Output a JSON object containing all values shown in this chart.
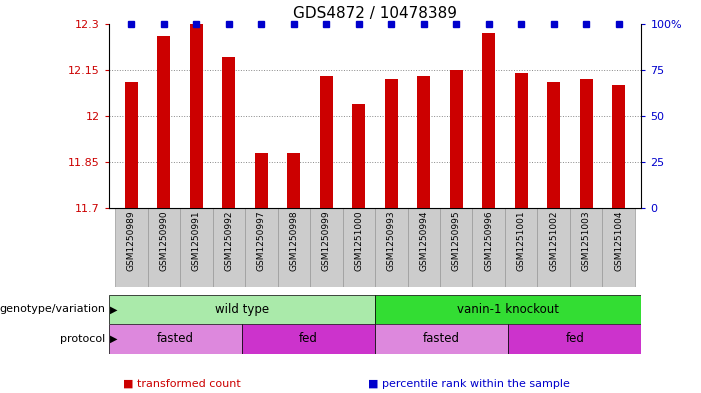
{
  "title": "GDS4872 / 10478389",
  "samples": [
    "GSM1250989",
    "GSM1250990",
    "GSM1250991",
    "GSM1250992",
    "GSM1250997",
    "GSM1250998",
    "GSM1250999",
    "GSM1251000",
    "GSM1250993",
    "GSM1250994",
    "GSM1250995",
    "GSM1250996",
    "GSM1251001",
    "GSM1251002",
    "GSM1251003",
    "GSM1251004"
  ],
  "red_values": [
    12.11,
    12.26,
    12.3,
    12.19,
    11.88,
    11.88,
    12.13,
    12.04,
    12.12,
    12.13,
    12.15,
    12.27,
    12.14,
    12.11,
    12.12,
    12.1
  ],
  "ylim_left": [
    11.7,
    12.3
  ],
  "ylim_right": [
    0,
    100
  ],
  "yticks_left": [
    11.7,
    11.85,
    12.0,
    12.15,
    12.3
  ],
  "yticks_right": [
    0,
    25,
    50,
    75,
    100
  ],
  "ytick_labels_left": [
    "11.7",
    "11.85",
    "12",
    "12.15",
    "12.3"
  ],
  "ytick_labels_right": [
    "0",
    "25",
    "50",
    "75",
    "100%"
  ],
  "bar_color": "#cc0000",
  "dot_color": "#0000cc",
  "background_color": "#ffffff",
  "grid_color": "#888888",
  "genotype_groups": [
    {
      "label": "wild type",
      "start": 0,
      "end": 8,
      "color": "#aaeaaa"
    },
    {
      "label": "vanin-1 knockout",
      "start": 8,
      "end": 16,
      "color": "#33dd33"
    }
  ],
  "protocol_groups": [
    {
      "label": "fasted",
      "start": 0,
      "end": 4,
      "color": "#dd88dd"
    },
    {
      "label": "fed",
      "start": 4,
      "end": 8,
      "color": "#cc33cc"
    },
    {
      "label": "fasted",
      "start": 8,
      "end": 12,
      "color": "#dd88dd"
    },
    {
      "label": "fed",
      "start": 12,
      "end": 16,
      "color": "#cc33cc"
    }
  ],
  "legend_items": [
    {
      "label": "transformed count",
      "color": "#cc0000"
    },
    {
      "label": "percentile rank within the sample",
      "color": "#0000cc"
    }
  ],
  "tick_bg_color": "#cccccc",
  "tick_border_color": "#999999",
  "title_fontsize": 11,
  "bar_width": 0.4
}
